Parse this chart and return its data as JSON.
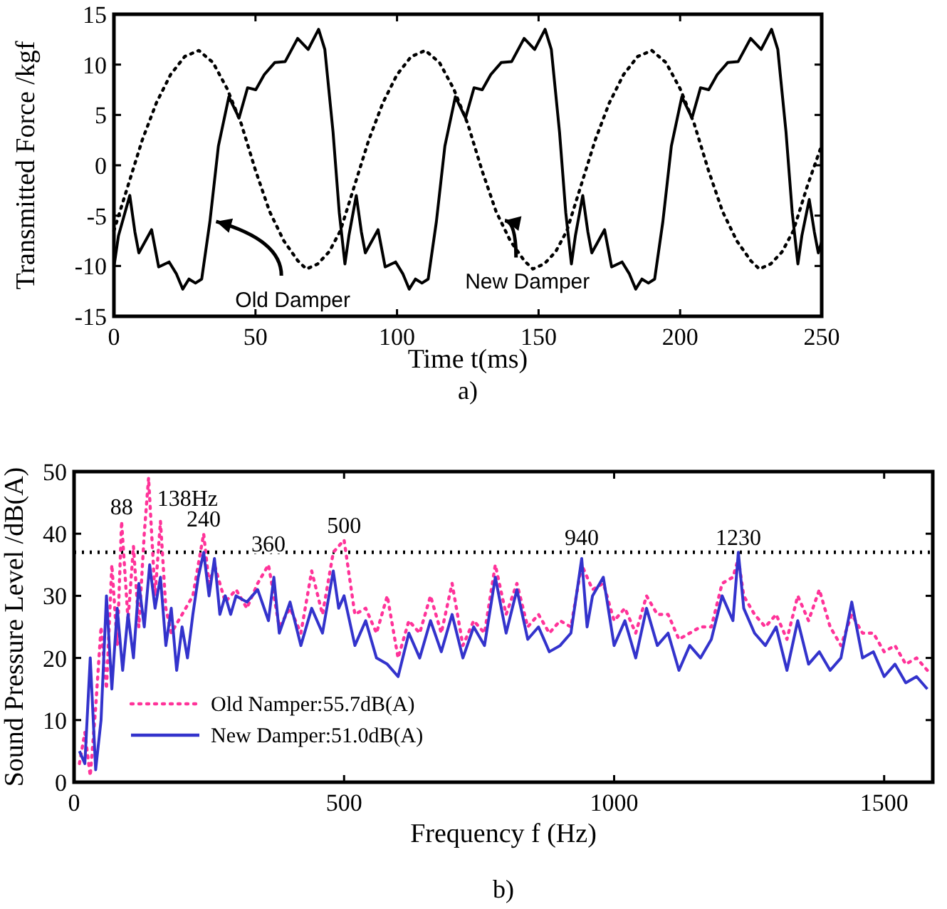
{
  "chart_data": [
    {
      "type": "line",
      "xlabel": "Time t(ms)",
      "ylabel": "Transmitted Force /kgf",
      "xlim": [
        0,
        250
      ],
      "xticks": [
        0,
        50,
        100,
        150,
        200,
        250
      ],
      "ylim": [
        -15,
        15
      ],
      "yticks": [
        -15,
        -10,
        -5,
        0,
        5,
        10,
        15
      ],
      "legend": false,
      "annotations": [
        {
          "text": "Old Damper",
          "x": 34,
          "y": -5.3
        },
        {
          "text": "New Damper",
          "x": 136,
          "y": -5.2
        },
        "a)"
      ],
      "series": [
        {
          "color": "#000000",
          "line_style": "solid",
          "x": [
            0,
            1.6,
            5.6,
            7.4,
            8.8,
            13.3,
            15.8,
            19.5,
            22.1,
            24.3,
            26.5,
            28.8,
            31,
            33.9,
            36.9,
            40.6,
            44.2,
            47.2,
            50.1,
            53.1,
            56.8,
            60.5,
            64.9,
            68.6,
            72.3,
            74.5,
            77.4,
            79.6,
            81.6,
            83,
            85.6,
            87.4,
            88.8,
            93.3,
            95.8,
            99.5,
            102.1,
            104.3,
            106.5,
            108.8,
            111,
            113.9,
            116.9,
            120.6,
            124.2,
            127.2,
            130.1,
            133.1,
            136.8,
            140.5,
            144.9,
            148.6,
            152.3,
            154.5,
            157.4,
            159.6,
            161.6,
            163,
            165.6,
            167.4,
            168.8,
            173.3,
            175.8,
            179.5,
            182.1,
            184.3,
            186.5,
            188.8,
            191,
            193.9,
            196.9,
            200.6,
            204.2,
            207.2,
            210.1,
            213.1,
            216.8,
            220.5,
            224.9,
            228.6,
            232.3,
            234.5,
            237.4,
            239.6,
            241.6,
            243,
            245.6,
            247.4,
            248.8,
            250
          ],
          "values": [
            -10.1,
            -7,
            -3,
            -6.6,
            -8.7,
            -6.4,
            -10.1,
            -9.6,
            -10.8,
            -12.3,
            -11.3,
            -11.7,
            -11.3,
            -5.6,
            1.9,
            6.8,
            4.7,
            7.7,
            7.5,
            9,
            10.2,
            10.3,
            12.6,
            11.5,
            13.5,
            11.5,
            3.3,
            -4.7,
            -9.8,
            -7,
            -3,
            -6.6,
            -8.7,
            -6.4,
            -10.1,
            -9.6,
            -10.8,
            -12.3,
            -11.3,
            -11.7,
            -11.3,
            -5.6,
            1.9,
            6.8,
            4.7,
            7.7,
            7.5,
            9,
            10.2,
            10.3,
            12.6,
            11.5,
            13.5,
            11.5,
            3.3,
            -4.7,
            -9.8,
            -7,
            -3,
            -6.6,
            -8.7,
            -6.4,
            -10.1,
            -9.6,
            -10.8,
            -12.3,
            -11.3,
            -11.7,
            -11.3,
            -5.6,
            1.9,
            6.8,
            4.7,
            7.7,
            7.5,
            9,
            10.2,
            10.3,
            12.6,
            11.5,
            13.5,
            11.5,
            3.3,
            -4.7,
            -9.8,
            -7,
            -3.4,
            -6.6,
            -8.7,
            -7.6
          ]
        },
        {
          "color": "#000000",
          "line_style": "dotted",
          "x": [
            0,
            5,
            10,
            15,
            20,
            25,
            30,
            35,
            40,
            45,
            50,
            55,
            60,
            65,
            68,
            72,
            76,
            80,
            85,
            90,
            95,
            100,
            105,
            110,
            115,
            120,
            125,
            130,
            135,
            140,
            145,
            148,
            152,
            156,
            160,
            165,
            170,
            175,
            180,
            185,
            190,
            195,
            200,
            205,
            210,
            215,
            220,
            225,
            228,
            232,
            236,
            240,
            245,
            250
          ],
          "values": [
            -6.5,
            -2,
            2.5,
            6.2,
            9,
            10.8,
            11.4,
            10.2,
            7.6,
            4.1,
            -0.5,
            -4.6,
            -7.5,
            -9.5,
            -10.3,
            -9.8,
            -8.6,
            -6.5,
            -2,
            2.5,
            6.2,
            9,
            10.8,
            11.4,
            10.2,
            7.6,
            4.1,
            -0.5,
            -4.6,
            -7.5,
            -9.5,
            -10.3,
            -9.8,
            -8.6,
            -6.5,
            -2,
            2.5,
            6.2,
            9,
            10.8,
            11.4,
            10.2,
            7.6,
            4.1,
            -0.5,
            -4.6,
            -7.5,
            -9.5,
            -10.3,
            -9.8,
            -8.6,
            -6.5,
            -2,
            2
          ]
        }
      ]
    },
    {
      "type": "line",
      "xlabel": "Frequency f (Hz)",
      "ylabel": "Sound Pressure Level  /dB(A)",
      "xlim": [
        0,
        1590
      ],
      "xticks": [
        0,
        500,
        1000,
        1500
      ],
      "ylim": [
        0,
        50
      ],
      "yticks": [
        0,
        10,
        20,
        30,
        40,
        50
      ],
      "legend": "bottom left",
      "ref_lines": [
        {
          "axis": "y",
          "value": 37,
          "color": "#000000",
          "line_style": "dotted"
        }
      ],
      "annotations": [
        {
          "text": "88",
          "x": 88,
          "y": 42
        },
        {
          "text": "138Hz",
          "x": 138,
          "y": 49
        },
        {
          "text": "240",
          "x": 240,
          "y": 40
        },
        {
          "text": "360",
          "x": 360,
          "y": 36
        },
        {
          "text": "500",
          "x": 500,
          "y": 39
        },
        {
          "text": "940",
          "x": 940,
          "y": 37
        },
        {
          "text": "1230",
          "x": 1230,
          "y": 37
        },
        "b)"
      ],
      "series": [
        {
          "name": "Old Namper:55.7dB(A)",
          "color": "#ff3399",
          "line_style": "dotted",
          "x": [
            10,
            20,
            30,
            40,
            50,
            60,
            70,
            80,
            88,
            100,
            110,
            120,
            130,
            138,
            150,
            160,
            170,
            180,
            200,
            220,
            240,
            250,
            260,
            280,
            300,
            320,
            340,
            360,
            380,
            400,
            420,
            440,
            460,
            480,
            500,
            520,
            540,
            560,
            580,
            600,
            620,
            640,
            660,
            680,
            700,
            720,
            740,
            760,
            780,
            800,
            820,
            840,
            860,
            880,
            900,
            920,
            940,
            960,
            980,
            1000,
            1020,
            1040,
            1060,
            1080,
            1100,
            1120,
            1140,
            1160,
            1180,
            1200,
            1220,
            1230,
            1240,
            1260,
            1280,
            1300,
            1320,
            1340,
            1360,
            1380,
            1400,
            1420,
            1440,
            1460,
            1480,
            1500,
            1520,
            1540,
            1560,
            1580
          ],
          "values": [
            3,
            8,
            1,
            12,
            25,
            15,
            35,
            22,
            42,
            26,
            38,
            25,
            40,
            49,
            30,
            42,
            28,
            24,
            27,
            30,
            40,
            32,
            35,
            29,
            31,
            28,
            32,
            35,
            25,
            28,
            24,
            34,
            27,
            37,
            39,
            27,
            28,
            24,
            30,
            20,
            26,
            24,
            30,
            24,
            32,
            22,
            26,
            24,
            35,
            27,
            32,
            25,
            27,
            24,
            26,
            25,
            35,
            31,
            32,
            26,
            28,
            24,
            30,
            27,
            27,
            23,
            24,
            25,
            25,
            32,
            33,
            36,
            30,
            27,
            25,
            27,
            23,
            30,
            26,
            31,
            25,
            22,
            27,
            24,
            24,
            21,
            22,
            19,
            20,
            18
          ]
        },
        {
          "name": "New Damper:51.0dB(A)",
          "color": "#3333cc",
          "line_style": "solid",
          "x": [
            10,
            20,
            30,
            40,
            50,
            60,
            70,
            80,
            90,
            100,
            110,
            120,
            130,
            140,
            150,
            160,
            170,
            180,
            190,
            200,
            210,
            220,
            230,
            240,
            250,
            260,
            270,
            280,
            290,
            300,
            320,
            340,
            360,
            370,
            380,
            400,
            420,
            440,
            460,
            480,
            490,
            500,
            520,
            540,
            560,
            580,
            600,
            620,
            640,
            660,
            680,
            700,
            720,
            740,
            760,
            780,
            800,
            820,
            840,
            860,
            880,
            900,
            920,
            940,
            950,
            960,
            980,
            1000,
            1020,
            1040,
            1060,
            1080,
            1100,
            1120,
            1140,
            1160,
            1180,
            1200,
            1220,
            1230,
            1240,
            1260,
            1280,
            1300,
            1320,
            1340,
            1360,
            1380,
            1400,
            1420,
            1440,
            1460,
            1480,
            1500,
            1520,
            1540,
            1560,
            1580
          ],
          "values": [
            5,
            3,
            20,
            2,
            10,
            30,
            15,
            28,
            18,
            27,
            20,
            32,
            25,
            35,
            28,
            33,
            22,
            28,
            18,
            25,
            20,
            27,
            33,
            37,
            30,
            36,
            27,
            30,
            27,
            30,
            29,
            31,
            26,
            33,
            24,
            29,
            22,
            28,
            24,
            34,
            28,
            30,
            22,
            26,
            20,
            19,
            17,
            24,
            20,
            26,
            21,
            27,
            20,
            25,
            22,
            33,
            24,
            31,
            23,
            25,
            21,
            22,
            24,
            36,
            25,
            30,
            33,
            22,
            26,
            20,
            28,
            22,
            24,
            18,
            22,
            20,
            23,
            30,
            26,
            37,
            28,
            24,
            22,
            25,
            18,
            26,
            19,
            21,
            18,
            20,
            29,
            20,
            21,
            17,
            19,
            16,
            17,
            15
          ]
        }
      ]
    }
  ]
}
